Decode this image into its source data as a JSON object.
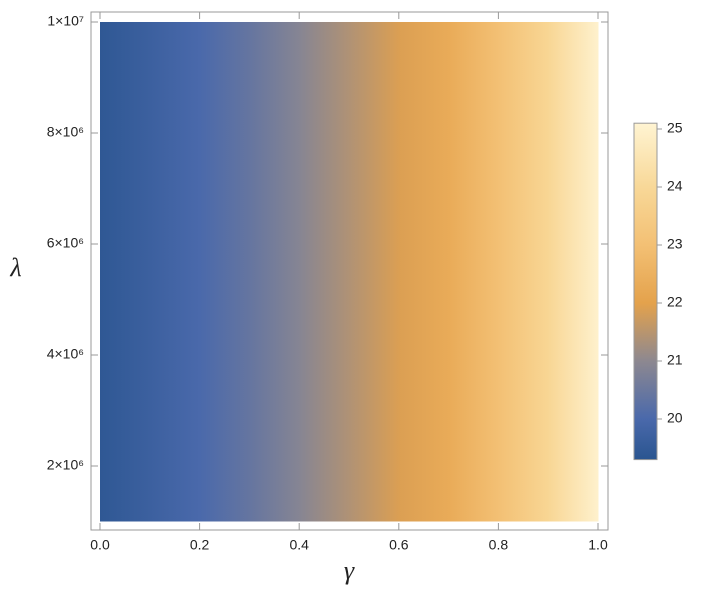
{
  "chart_data": {
    "type": "density",
    "xlabel": "γ",
    "ylabel": "λ",
    "x": [
      0,
      0.1,
      0.2,
      0.3,
      0.4,
      0.5,
      0.6,
      0.7,
      0.8,
      0.9,
      1.0
    ],
    "values": [
      19.4,
      19.7,
      20.0,
      20.4,
      20.9,
      21.4,
      21.9,
      22.3,
      23.0,
      23.9,
      25.0
    ],
    "xlim": [
      0,
      1
    ],
    "xticks": [
      {
        "value": 0,
        "label": "0.0"
      },
      0.2,
      0.4,
      0.6,
      0.8,
      {
        "value": 1,
        "label": "1.0"
      }
    ],
    "ylim": [
      1000000,
      10000000
    ],
    "yticks": [
      {
        "value": 2000000,
        "label": "2×10⁶"
      },
      {
        "value": 4000000,
        "label": "4×10⁶"
      },
      {
        "value": 6000000,
        "label": "6×10⁶"
      },
      {
        "value": 8000000,
        "label": "8×10⁶"
      },
      {
        "value": 10000000,
        "label": "1×10⁷"
      }
    ],
    "zlim": [
      19.3,
      25.1
    ],
    "zticks": [
      20,
      21,
      22,
      23,
      24,
      25
    ],
    "colorscale": [
      {
        "value": 19.3,
        "color": "#2a5590"
      },
      {
        "value": 20,
        "color": "#4a69ab"
      },
      {
        "value": 21,
        "color": "#8d8890"
      },
      {
        "value": 22,
        "color": "#e4a24c"
      },
      {
        "value": 23,
        "color": "#f3c074"
      },
      {
        "value": 24,
        "color": "#f8d898"
      },
      {
        "value": 25.1,
        "color": "#fff4d2"
      }
    ]
  }
}
